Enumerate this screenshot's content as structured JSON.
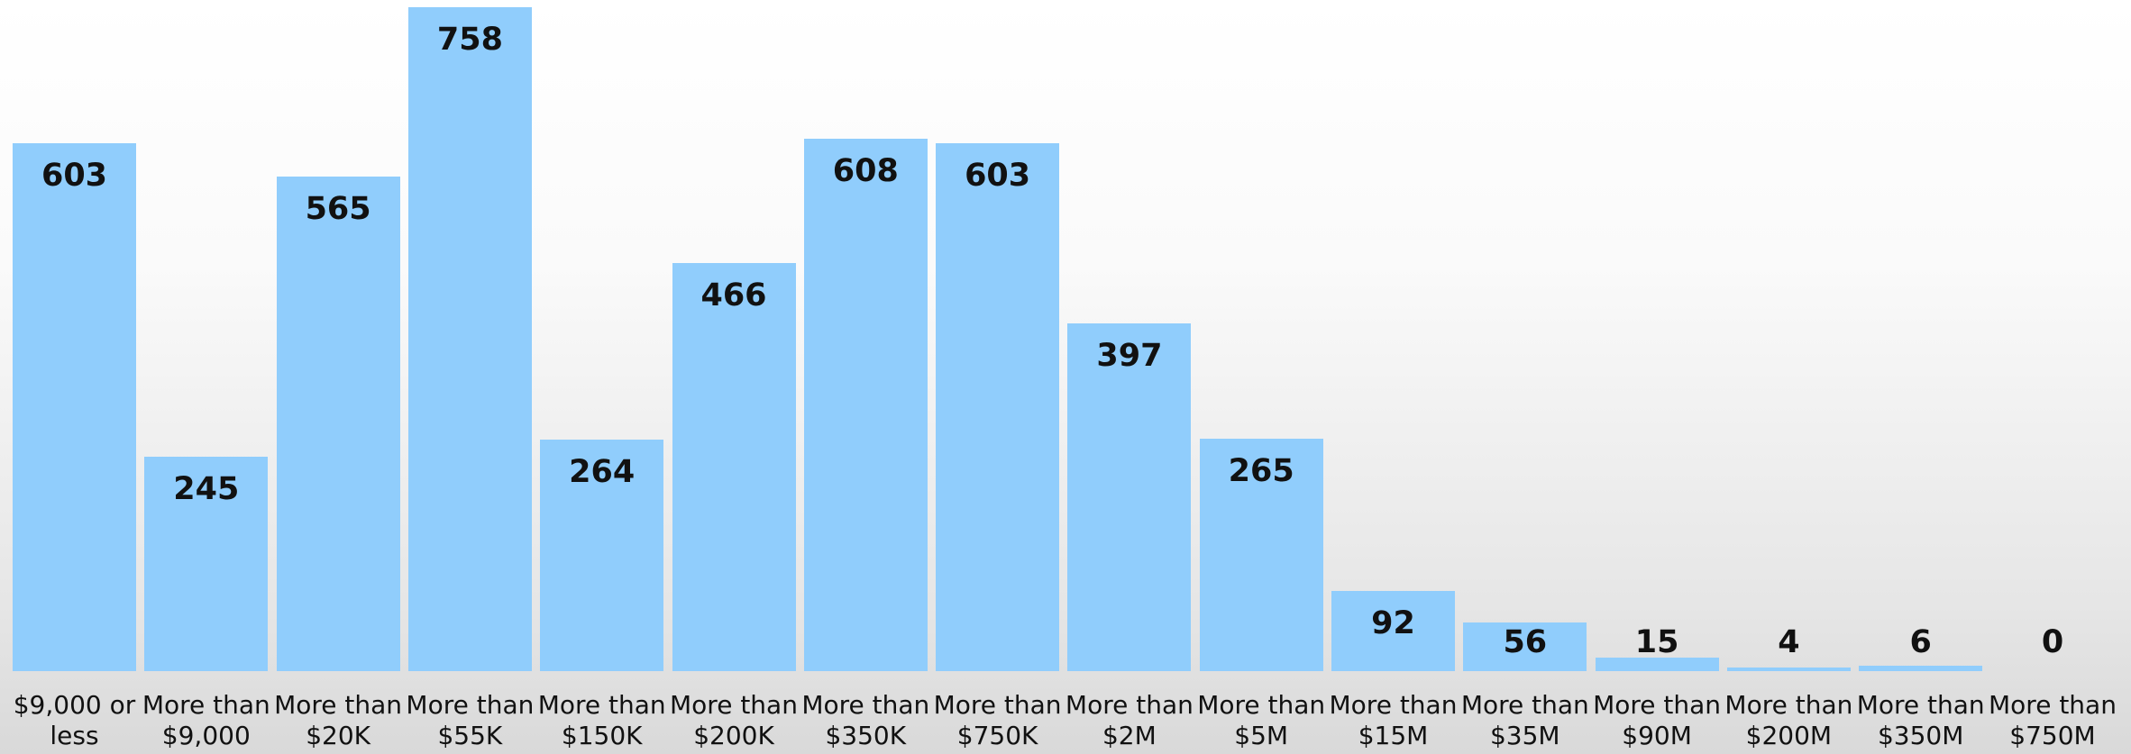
{
  "chart_data": {
    "type": "bar",
    "categories": [
      "$9,000 or less",
      "More than $9,000",
      "More than $20K",
      "More than $55K",
      "More than $150K",
      "More than $200K",
      "More than $350K",
      "More than $750K",
      "More than $2M",
      "More than $5M",
      "More than $15M",
      "More than $35M",
      "More than $90M",
      "More than $200M",
      "More than $350M",
      "More than $750M"
    ],
    "values": [
      603,
      245,
      565,
      758,
      264,
      466,
      608,
      603,
      397,
      265,
      92,
      56,
      15,
      4,
      6,
      0
    ],
    "color": "#90cdfc"
  }
}
